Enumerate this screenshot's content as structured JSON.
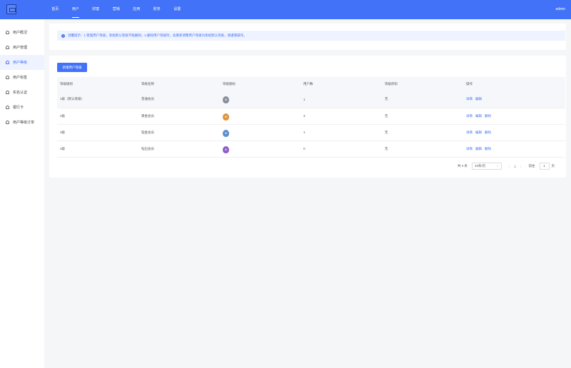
{
  "header": {
    "nav": [
      "首页",
      "用户",
      "财富",
      "营销",
      "应用",
      "财务",
      "设置"
    ],
    "active": 1,
    "user": "admin"
  },
  "sidebar": {
    "items": [
      "用户概况",
      "用户管理",
      "用户等级",
      "用户标签",
      "实名认证",
      "银行卡",
      "用户等级订单"
    ],
    "active": 2
  },
  "notice": {
    "text": "温馨提示：1.管理用户等级，系统默认等级不能删除；2.删除用户等级时，会重新调整用户等级为系统默认等级，请谨慎操作。"
  },
  "toolbar": {
    "add_label": "新增用户等级"
  },
  "table": {
    "columns": [
      "等级级别",
      "等级名称",
      "等级图标",
      "用户数",
      "等级折扣",
      "操作"
    ],
    "rows": [
      {
        "level": "1级（默认等级）",
        "name": "普通会员",
        "icon_color": "#8a8f9c",
        "users": "1",
        "discount": "无",
        "actions": [
          "详情",
          "编辑"
        ]
      },
      {
        "level": "2级",
        "name": "黄金会员",
        "icon_color": "#e0963e",
        "users": "3",
        "discount": "无",
        "actions": [
          "详情",
          "编辑",
          "删除"
        ]
      },
      {
        "level": "3级",
        "name": "铂金会员",
        "icon_color": "#5b8fd0",
        "users": "1",
        "discount": "无",
        "actions": [
          "详情",
          "编辑",
          "删除"
        ]
      },
      {
        "level": "4级",
        "name": "钻石会员",
        "icon_color": "#8d5fc9",
        "users": "0",
        "discount": "无",
        "actions": [
          "详情",
          "编辑",
          "删除"
        ]
      }
    ]
  },
  "pagination": {
    "total": "共 4 条",
    "page_size": "10条/页",
    "prev": "‹",
    "current": "1",
    "next": "›",
    "goto_label": "前往",
    "goto_value": "1",
    "page_unit": "页"
  },
  "colors": {
    "accent": "#4272f7"
  }
}
